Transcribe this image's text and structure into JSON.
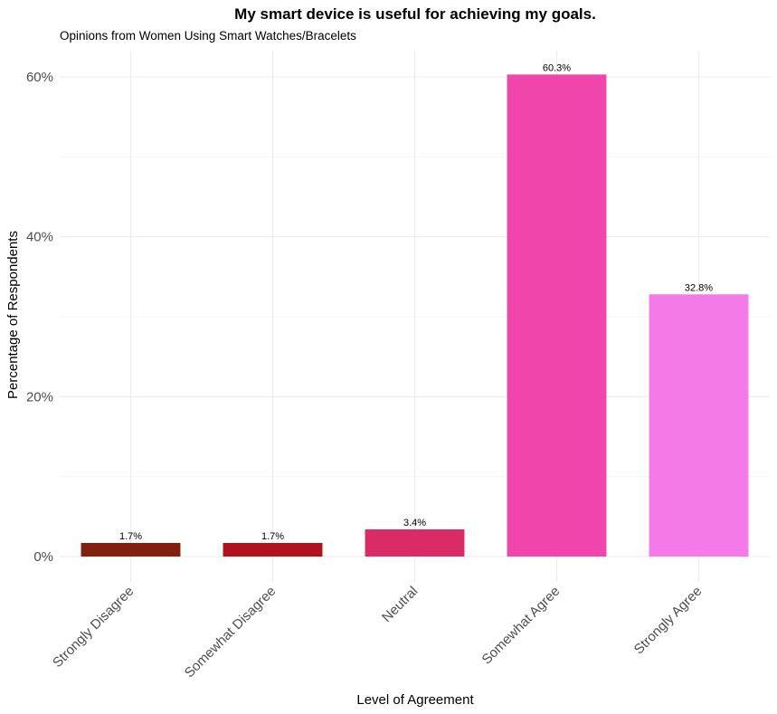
{
  "chart_data": {
    "type": "bar",
    "title": "My smart device is useful for achieving my goals.",
    "subtitle": "Opinions from Women Using Smart Watches/Bracelets",
    "xlabel": "Level of Agreement",
    "ylabel": "Percentage of Respondents",
    "categories": [
      "Strongly Disagree",
      "Somewhat Disagree",
      "Neutral",
      "Somewhat Agree",
      "Strongly Agree"
    ],
    "values": [
      1.7,
      1.7,
      3.4,
      60.3,
      32.8
    ],
    "data_labels": [
      "1.7%",
      "1.7%",
      "3.4%",
      "60.3%",
      "32.8%"
    ],
    "colors": [
      "#82200f",
      "#b0131e",
      "#d92b66",
      "#f046ab",
      "#f47be7"
    ],
    "ylim": [
      0,
      63.3
    ],
    "yticks": [
      0,
      20,
      40,
      60
    ],
    "ytick_labels": [
      "0%",
      "20%",
      "40%",
      "60%"
    ],
    "grid": true,
    "legend": "none"
  }
}
